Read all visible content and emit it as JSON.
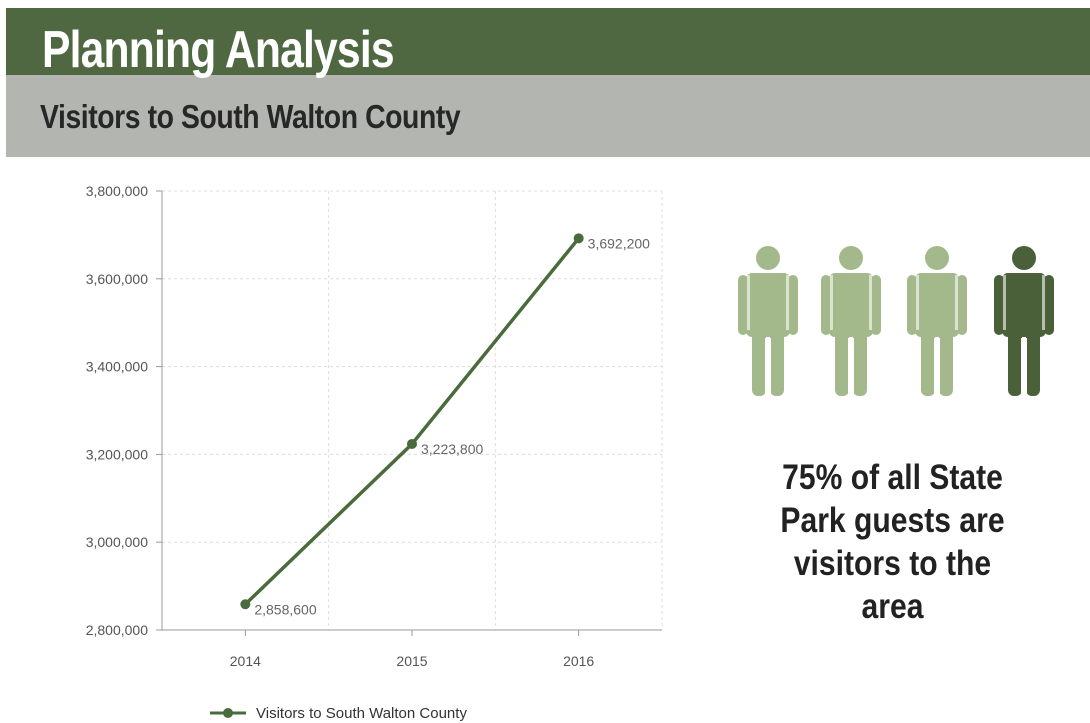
{
  "header": {
    "title": "Planning Analysis",
    "subtitle": "Visitors to South Walton County"
  },
  "colors": {
    "title_band": "#4f6841",
    "subtitle_band": "#b3b5b0",
    "series_line": "#4a6b3b",
    "figure_light": "#a3b98b",
    "figure_dark": "#4a6038"
  },
  "chart_data": {
    "type": "line",
    "title": "",
    "xlabel": "",
    "ylabel": "",
    "categories": [
      "2014",
      "2015",
      "2016"
    ],
    "series": [
      {
        "name": "Visitors to South Walton County",
        "values": [
          2858600,
          3223800,
          3692200
        ],
        "labels": [
          "2,858,600",
          "3,223,800",
          "3,692,200"
        ]
      }
    ],
    "ylim": [
      2800000,
      3800000
    ],
    "yticks": [
      2800000,
      3000000,
      3200000,
      3400000,
      3600000,
      3800000
    ],
    "ytick_labels": [
      "2,800,000",
      "3,000,000",
      "3,200,000",
      "3,400,000",
      "3,600,000",
      "3,800,000"
    ],
    "grid": true,
    "legend_position": "bottom"
  },
  "infographic": {
    "figures": [
      {
        "icon": "person-icon",
        "shade": "light"
      },
      {
        "icon": "person-icon",
        "shade": "light"
      },
      {
        "icon": "person-icon",
        "shade": "light"
      },
      {
        "icon": "person-icon",
        "shade": "dark"
      }
    ],
    "stat_line1": "75% of all State",
    "stat_line2": "Park guests are",
    "stat_line3": "visitors to the area"
  }
}
